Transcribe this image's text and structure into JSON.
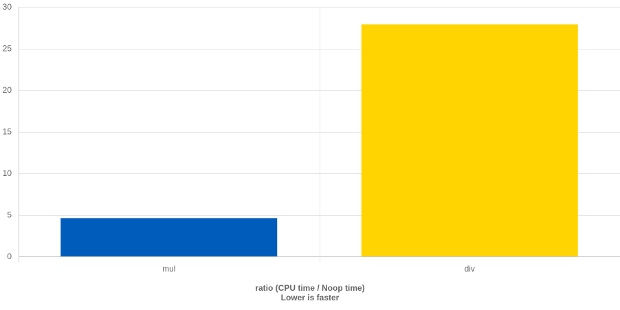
{
  "chart_data": {
    "type": "bar",
    "categories": [
      "mul",
      "div"
    ],
    "series": [
      {
        "values": [
          4.6,
          27.9
        ],
        "colors": [
          "#005cbb",
          "#ffd400"
        ]
      }
    ],
    "xlabel": [
      "ratio (CPU time / Noop time)",
      "Lower is faster"
    ],
    "ylabel": "",
    "ylim": [
      0,
      30
    ],
    "yticks": [
      0,
      5,
      10,
      15,
      20,
      25,
      30
    ],
    "grid": true,
    "legend": "none",
    "colors": {
      "grid": "#e6e6e6",
      "axis": "#c8c8c8",
      "tick_text": "#666666"
    }
  }
}
